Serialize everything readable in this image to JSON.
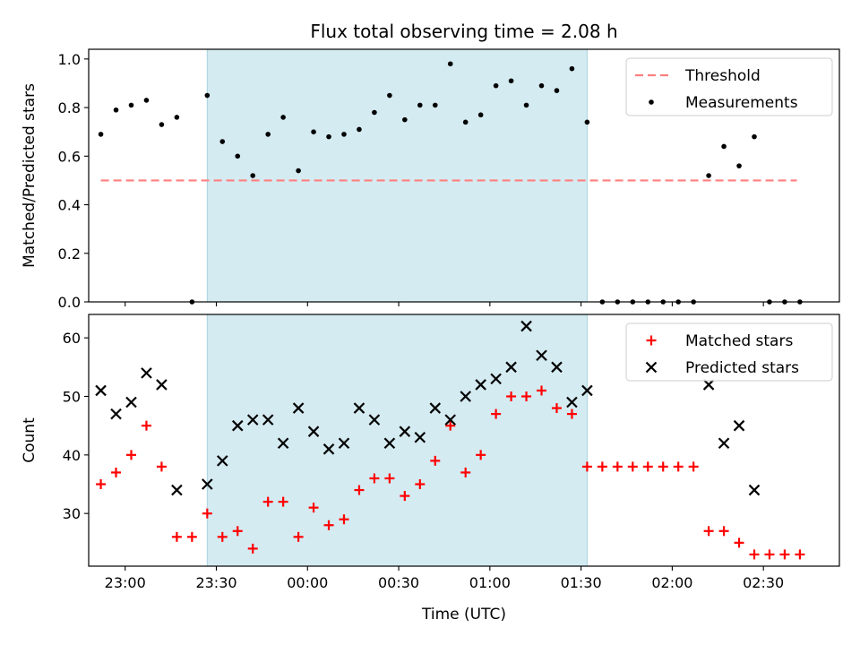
{
  "figure": {
    "title": "Flux total observing time = 2.08 h"
  },
  "chart_data": [
    {
      "type": "scatter",
      "panel": "top",
      "ylabel": "Matched/Predicted stars",
      "xlabel": "",
      "xlim": [
        "22:48",
        "02:55"
      ],
      "ylim": [
        0.0,
        1.04
      ],
      "yticks": [
        0.0,
        0.2,
        0.4,
        0.6,
        0.8,
        1.0
      ],
      "ytick_labels": [
        "0.0",
        "0.2",
        "0.4",
        "0.6",
        "0.8",
        "1.0"
      ],
      "xtick_times": [
        "23:00",
        "23:30",
        "00:00",
        "00:30",
        "01:00",
        "01:30",
        "02:00",
        "02:30"
      ],
      "show_xtick_labels": false,
      "shaded_span": {
        "start": "23:27",
        "end": "01:32",
        "color": "#d4ebf1"
      },
      "legend": {
        "position": "top-right",
        "entries": [
          "Threshold",
          "Measurements"
        ]
      },
      "threshold": {
        "name": "Threshold",
        "y": 0.5,
        "x_start": "22:52",
        "x_end": "02:41",
        "color": "#ff7f7f",
        "style": "dashed"
      },
      "series": [
        {
          "name": "Measurements",
          "color": "#000000",
          "marker": "dot",
          "x": [
            "22:52",
            "22:57",
            "23:02",
            "23:07",
            "23:12",
            "23:17",
            "23:22",
            "23:27",
            "23:32",
            "23:37",
            "23:42",
            "23:47",
            "23:52",
            "23:57",
            "00:02",
            "00:07",
            "00:12",
            "00:17",
            "00:22",
            "00:27",
            "00:32",
            "00:37",
            "00:42",
            "00:47",
            "00:52",
            "00:57",
            "01:02",
            "01:07",
            "01:12",
            "01:17",
            "01:22",
            "01:27",
            "01:32",
            "01:37",
            "01:42",
            "01:47",
            "01:52",
            "01:57",
            "02:02",
            "02:07",
            "02:12",
            "02:17",
            "02:22",
            "02:27",
            "02:32",
            "02:37",
            "02:42"
          ],
          "values": [
            0.69,
            0.79,
            0.81,
            0.83,
            0.73,
            0.76,
            0.0,
            0.85,
            0.66,
            0.6,
            0.52,
            0.69,
            0.76,
            0.54,
            0.7,
            0.68,
            0.69,
            0.71,
            0.78,
            0.85,
            0.75,
            0.81,
            0.81,
            0.98,
            0.74,
            0.77,
            0.89,
            0.91,
            0.81,
            0.89,
            0.87,
            0.96,
            0.74,
            0.0,
            0.0,
            0.0,
            0.0,
            0.0,
            0.0,
            0.0,
            0.52,
            0.64,
            0.56,
            0.68,
            0.0,
            0.0,
            0.0
          ]
        }
      ]
    },
    {
      "type": "scatter",
      "panel": "bottom",
      "ylabel": "Count",
      "xlabel": "Time (UTC)",
      "xlim": [
        "22:48",
        "02:55"
      ],
      "ylim": [
        21.0,
        64.0
      ],
      "yticks": [
        30,
        40,
        50,
        60
      ],
      "ytick_labels": [
        "30",
        "40",
        "50",
        "60"
      ],
      "xtick_times": [
        "23:00",
        "23:30",
        "00:00",
        "00:30",
        "01:00",
        "01:30",
        "02:00",
        "02:30"
      ],
      "xtick_labels": [
        "23:00",
        "23:30",
        "00:00",
        "00:30",
        "01:00",
        "01:30",
        "02:00",
        "02:30"
      ],
      "shaded_span": {
        "start": "23:27",
        "end": "01:32",
        "color": "#d4ebf1"
      },
      "legend": {
        "position": "top-right",
        "entries": [
          "Matched stars",
          "Predicted stars"
        ]
      },
      "series": [
        {
          "name": "Matched stars",
          "color": "#ff0000",
          "marker": "plus",
          "x": [
            "22:52",
            "22:57",
            "23:02",
            "23:07",
            "23:12",
            "23:17",
            "23:22",
            "23:27",
            "23:32",
            "23:37",
            "23:42",
            "23:47",
            "23:52",
            "23:57",
            "00:02",
            "00:07",
            "00:12",
            "00:17",
            "00:22",
            "00:27",
            "00:32",
            "00:37",
            "00:42",
            "00:47",
            "00:52",
            "00:57",
            "01:02",
            "01:07",
            "01:12",
            "01:17",
            "01:22",
            "01:27",
            "01:32",
            "01:37",
            "01:42",
            "01:47",
            "01:52",
            "01:57",
            "02:02",
            "02:07",
            "02:12",
            "02:17",
            "02:22",
            "02:27",
            "02:32",
            "02:37",
            "02:42"
          ],
          "values": [
            35,
            37,
            40,
            45,
            38,
            26,
            26,
            30,
            26,
            27,
            24,
            32,
            32,
            26,
            31,
            28,
            29,
            34,
            36,
            36,
            33,
            35,
            39,
            45,
            37,
            40,
            47,
            50,
            50,
            51,
            48,
            47,
            38,
            38,
            38,
            38,
            38,
            38,
            38,
            38,
            27,
            27,
            25,
            23,
            23,
            23,
            23
          ]
        },
        {
          "name": "Predicted stars",
          "color": "#000000",
          "marker": "x",
          "x": [
            "22:52",
            "22:57",
            "23:02",
            "23:07",
            "23:12",
            "23:17",
            "23:27",
            "23:32",
            "23:37",
            "23:42",
            "23:47",
            "23:52",
            "23:57",
            "00:02",
            "00:07",
            "00:12",
            "00:17",
            "00:22",
            "00:27",
            "00:32",
            "00:37",
            "00:42",
            "00:47",
            "00:52",
            "00:57",
            "01:02",
            "01:07",
            "01:12",
            "01:17",
            "01:22",
            "01:27",
            "01:32",
            "02:12",
            "02:17",
            "02:22",
            "02:27"
          ],
          "values": [
            51,
            47,
            49,
            54,
            52,
            34,
            35,
            39,
            45,
            46,
            46,
            42,
            48,
            44,
            41,
            42,
            48,
            46,
            42,
            44,
            43,
            48,
            46,
            50,
            52,
            53,
            55,
            62,
            57,
            55,
            49,
            51,
            52,
            42,
            45,
            34
          ]
        }
      ]
    }
  ]
}
